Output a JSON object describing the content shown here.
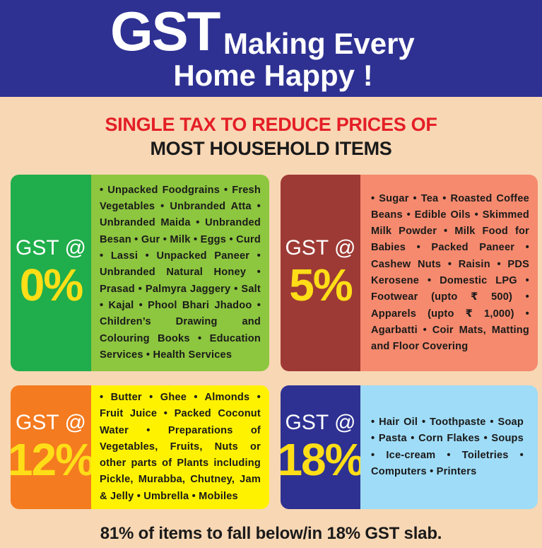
{
  "header": {
    "big": "GST",
    "line1": "Making Every",
    "line2": "Home Happy !",
    "background": "#2e3192"
  },
  "subtitle": {
    "line1": "SINGLE TAX TO REDUCE PRICES OF",
    "line2": "MOST HOUSEHOLD ITEMS"
  },
  "slabs": [
    {
      "label": "GST @",
      "rate": "0%",
      "items": "• Unpacked Foodgrains • Fresh Vegetables • Unbranded Atta • Unbranded Maida • Unbranded Besan • Gur • Milk • Eggs • Curd • Lassi • Unpacked Paneer • Unbranded Natural Honey • Prasad • Palmyra Jaggery • Salt • Kajal • Phool Bhari Jhadoo • Children’s Drawing and Colouring Books • Education Services • Health Services",
      "left_color": "#1fae4b",
      "right_color": "#8dc63f"
    },
    {
      "label": "GST @",
      "rate": "5%",
      "items": "• Sugar • Tea • Roasted Coffee Beans • Edible Oils • Skimmed Milk Powder • Milk Food for Babies • Packed Paneer • Cashew Nuts • Raisin • PDS Kerosene • Domestic LPG • Footwear (upto ₹ 500) • Apparels (upto ₹ 1,000) • Agarbatti • Coir Mats, Matting and Floor Covering",
      "left_color": "#9e3a35",
      "right_color": "#f58a6e"
    },
    {
      "label": "GST @",
      "rate": "12%",
      "items": "• Butter • Ghee • Almonds • Fruit Juice • Packed Coconut Water • Preparations of Vegetables, Fruits, Nuts or other parts of Plants including Pickle, Murabba, Chutney, Jam & Jelly • Umbrella • Mobiles",
      "left_color": "#f47b20",
      "right_color": "#fff200"
    },
    {
      "label": "GST @",
      "rate": "18%",
      "items": "• Hair Oil • Toothpaste • Soap • Pasta • Corn Flakes • Soups • Ice-cream • Toiletries • Computers • Printers",
      "left_color": "#2e3192",
      "right_color": "#9fdcf7"
    }
  ],
  "footer": "81% of items to fall below/in 18% GST slab."
}
